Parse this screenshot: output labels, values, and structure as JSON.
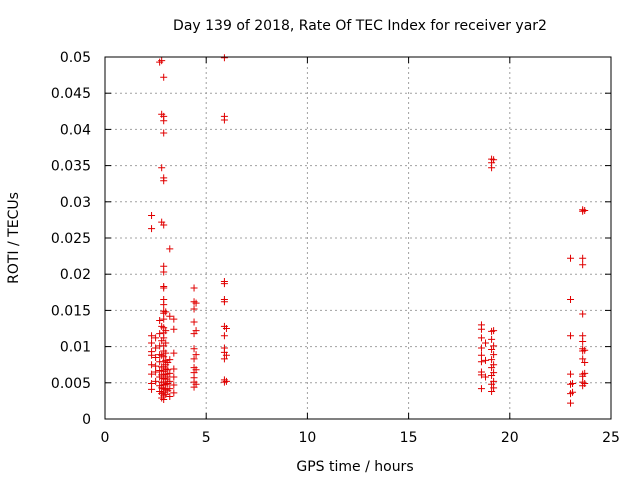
{
  "chart_data": {
    "type": "scatter",
    "title": "Day 139 of 2018, Rate Of TEC Index for receiver yar2",
    "xlabel": "GPS time / hours",
    "ylabel": "ROTI / TECUs",
    "xlim": [
      0,
      25
    ],
    "ylim": [
      0,
      0.05
    ],
    "xticks": [
      0,
      5,
      10,
      15,
      20,
      25
    ],
    "xtick_labels": [
      "0",
      "5",
      "10",
      "15",
      "20",
      "25"
    ],
    "yticks": [
      0,
      0.005,
      0.01,
      0.015,
      0.02,
      0.025,
      0.03,
      0.035,
      0.04,
      0.045,
      0.05
    ],
    "ytick_labels": [
      "0",
      "0.005",
      "0.01",
      "0.015",
      "0.02",
      "0.025",
      "0.03",
      "0.035",
      "0.04",
      "0.045",
      "0.05"
    ],
    "grid": true,
    "marker": "+",
    "color": "#e00000",
    "series": [
      {
        "name": "ROTI",
        "points": [
          [
            2.3,
            0.0281
          ],
          [
            2.3,
            0.0263
          ],
          [
            2.3,
            0.0115
          ],
          [
            2.3,
            0.0105
          ],
          [
            2.3,
            0.0093
          ],
          [
            2.3,
            0.0088
          ],
          [
            2.3,
            0.0075
          ],
          [
            2.3,
            0.0062
          ],
          [
            2.3,
            0.0049
          ],
          [
            2.3,
            0.0041
          ],
          [
            2.5,
            0.0112
          ],
          [
            2.5,
            0.0098
          ],
          [
            2.5,
            0.0085
          ],
          [
            2.5,
            0.0073
          ],
          [
            2.5,
            0.0065
          ],
          [
            2.5,
            0.0052
          ],
          [
            2.7,
            0.0493
          ],
          [
            2.7,
            0.0136
          ],
          [
            2.7,
            0.0118
          ],
          [
            2.7,
            0.0101
          ],
          [
            2.7,
            0.0089
          ],
          [
            2.7,
            0.0079
          ],
          [
            2.7,
            0.0067
          ],
          [
            2.7,
            0.0058
          ],
          [
            2.7,
            0.0046
          ],
          [
            2.7,
            0.0038
          ],
          [
            2.8,
            0.0495
          ],
          [
            2.8,
            0.0421
          ],
          [
            2.8,
            0.0347
          ],
          [
            2.8,
            0.0272
          ],
          [
            2.8,
            0.0128
          ],
          [
            2.8,
            0.0108
          ],
          [
            2.8,
            0.0088
          ],
          [
            2.8,
            0.0072
          ],
          [
            2.8,
            0.0061
          ],
          [
            2.8,
            0.0051
          ],
          [
            2.8,
            0.0043
          ],
          [
            2.8,
            0.0035
          ],
          [
            2.8,
            0.0029
          ],
          [
            2.9,
            0.0472
          ],
          [
            2.9,
            0.0418
          ],
          [
            2.9,
            0.0412
          ],
          [
            2.9,
            0.0395
          ],
          [
            2.9,
            0.0333
          ],
          [
            2.9,
            0.0329
          ],
          [
            2.9,
            0.0268
          ],
          [
            2.9,
            0.0211
          ],
          [
            2.9,
            0.0203
          ],
          [
            2.9,
            0.0183
          ],
          [
            2.9,
            0.0181
          ],
          [
            2.9,
            0.0165
          ],
          [
            2.9,
            0.0158
          ],
          [
            2.9,
            0.0149
          ],
          [
            2.9,
            0.0146
          ],
          [
            2.9,
            0.0138
          ],
          [
            2.9,
            0.0126
          ],
          [
            2.9,
            0.0119
          ],
          [
            2.9,
            0.0112
          ],
          [
            2.9,
            0.0101
          ],
          [
            2.9,
            0.0094
          ],
          [
            2.9,
            0.0086
          ],
          [
            2.9,
            0.0079
          ],
          [
            2.9,
            0.0072
          ],
          [
            2.9,
            0.0066
          ],
          [
            2.9,
            0.0061
          ],
          [
            2.9,
            0.0056
          ],
          [
            2.9,
            0.0051
          ],
          [
            2.9,
            0.0047
          ],
          [
            2.9,
            0.0042
          ],
          [
            2.9,
            0.0037
          ],
          [
            2.9,
            0.0032
          ],
          [
            2.9,
            0.0027
          ],
          [
            3.0,
            0.0148
          ],
          [
            3.0,
            0.0122
          ],
          [
            3.0,
            0.0105
          ],
          [
            3.0,
            0.0091
          ],
          [
            3.0,
            0.0081
          ],
          [
            3.0,
            0.0075
          ],
          [
            3.0,
            0.0069
          ],
          [
            3.0,
            0.0062
          ],
          [
            3.0,
            0.0055
          ],
          [
            3.0,
            0.0048
          ],
          [
            3.0,
            0.0041
          ],
          [
            3.0,
            0.0034
          ],
          [
            3.1,
            0.0078
          ],
          [
            3.1,
            0.0068
          ],
          [
            3.1,
            0.0058
          ],
          [
            3.1,
            0.0049
          ],
          [
            3.1,
            0.0039
          ],
          [
            3.2,
            0.0235
          ],
          [
            3.2,
            0.0142
          ],
          [
            3.2,
            0.0082
          ],
          [
            3.2,
            0.0063
          ],
          [
            3.2,
            0.0052
          ],
          [
            3.2,
            0.0042
          ],
          [
            3.2,
            0.0031
          ],
          [
            3.4,
            0.0138
          ],
          [
            3.4,
            0.0124
          ],
          [
            3.4,
            0.0091
          ],
          [
            3.4,
            0.0069
          ],
          [
            3.4,
            0.0058
          ],
          [
            3.4,
            0.0047
          ],
          [
            3.4,
            0.0036
          ],
          [
            4.4,
            0.0181
          ],
          [
            4.4,
            0.0162
          ],
          [
            4.4,
            0.0152
          ],
          [
            4.4,
            0.0134
          ],
          [
            4.4,
            0.0118
          ],
          [
            4.4,
            0.0097
          ],
          [
            4.4,
            0.0083
          ],
          [
            4.4,
            0.0071
          ],
          [
            4.4,
            0.0064
          ],
          [
            4.4,
            0.0057
          ],
          [
            4.4,
            0.0051
          ],
          [
            4.4,
            0.0044
          ],
          [
            4.5,
            0.016
          ],
          [
            4.5,
            0.0122
          ],
          [
            4.5,
            0.0089
          ],
          [
            4.5,
            0.0068
          ],
          [
            4.5,
            0.0048
          ],
          [
            5.9,
            0.0499
          ],
          [
            5.9,
            0.0418
          ],
          [
            5.9,
            0.0413
          ],
          [
            5.9,
            0.019
          ],
          [
            5.9,
            0.0187
          ],
          [
            5.9,
            0.0165
          ],
          [
            5.9,
            0.0162
          ],
          [
            5.9,
            0.0128
          ],
          [
            5.9,
            0.0115
          ],
          [
            5.9,
            0.0098
          ],
          [
            5.9,
            0.0092
          ],
          [
            5.9,
            0.0083
          ],
          [
            5.9,
            0.0054
          ],
          [
            5.9,
            0.0051
          ],
          [
            6.0,
            0.0125
          ],
          [
            6.0,
            0.0088
          ],
          [
            6.0,
            0.0052
          ],
          [
            18.6,
            0.013
          ],
          [
            18.6,
            0.0124
          ],
          [
            18.6,
            0.0112
          ],
          [
            18.6,
            0.0098
          ],
          [
            18.6,
            0.0088
          ],
          [
            18.6,
            0.0079
          ],
          [
            18.6,
            0.0065
          ],
          [
            18.6,
            0.0061
          ],
          [
            18.6,
            0.0042
          ],
          [
            18.8,
            0.0105
          ],
          [
            18.8,
            0.0081
          ],
          [
            18.8,
            0.0058
          ],
          [
            19.1,
            0.0359
          ],
          [
            19.1,
            0.0354
          ],
          [
            19.1,
            0.0347
          ],
          [
            19.1,
            0.0121
          ],
          [
            19.1,
            0.011
          ],
          [
            19.1,
            0.0096
          ],
          [
            19.1,
            0.0082
          ],
          [
            19.1,
            0.0071
          ],
          [
            19.1,
            0.006
          ],
          [
            19.1,
            0.0048
          ],
          [
            19.1,
            0.0038
          ],
          [
            19.2,
            0.0358
          ],
          [
            19.2,
            0.0122
          ],
          [
            19.2,
            0.0101
          ],
          [
            19.2,
            0.0089
          ],
          [
            19.2,
            0.0075
          ],
          [
            19.2,
            0.0064
          ],
          [
            19.2,
            0.0052
          ],
          [
            19.2,
            0.0043
          ],
          [
            23.0,
            0.0222
          ],
          [
            23.0,
            0.0165
          ],
          [
            23.0,
            0.0115
          ],
          [
            23.0,
            0.0062
          ],
          [
            23.0,
            0.0048
          ],
          [
            23.0,
            0.0035
          ],
          [
            23.0,
            0.0022
          ],
          [
            23.1,
            0.0049
          ],
          [
            23.1,
            0.0037
          ],
          [
            23.6,
            0.0289
          ],
          [
            23.6,
            0.0287
          ],
          [
            23.6,
            0.0222
          ],
          [
            23.6,
            0.0213
          ],
          [
            23.6,
            0.0145
          ],
          [
            23.6,
            0.0115
          ],
          [
            23.6,
            0.0107
          ],
          [
            23.6,
            0.0097
          ],
          [
            23.6,
            0.0094
          ],
          [
            23.6,
            0.0083
          ],
          [
            23.6,
            0.0062
          ],
          [
            23.6,
            0.0059
          ],
          [
            23.6,
            0.0051
          ],
          [
            23.6,
            0.0046
          ],
          [
            23.7,
            0.0288
          ],
          [
            23.7,
            0.0095
          ],
          [
            23.7,
            0.0078
          ],
          [
            23.7,
            0.0063
          ],
          [
            23.7,
            0.0049
          ]
        ]
      }
    ]
  }
}
